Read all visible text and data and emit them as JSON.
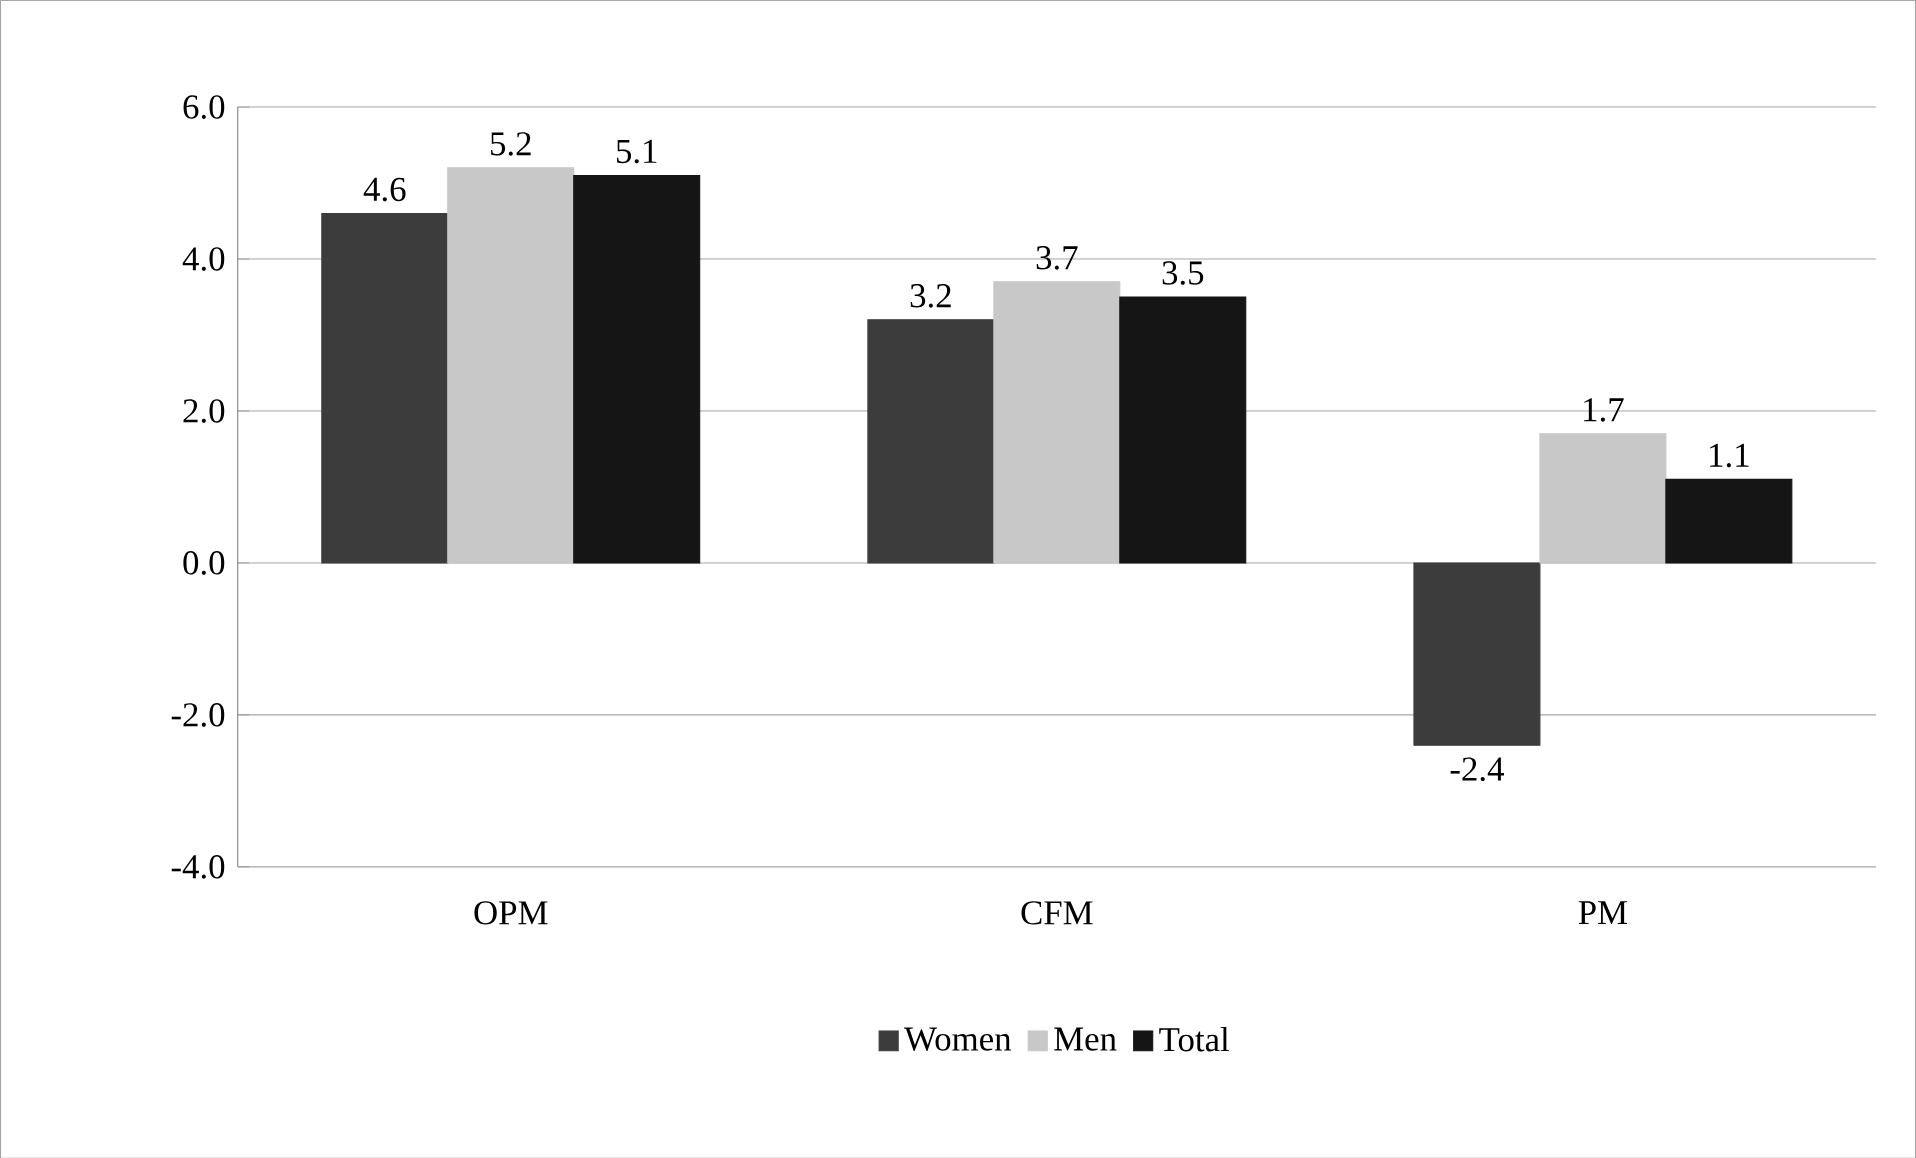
{
  "chart_data": {
    "type": "bar",
    "categories": [
      "OPM",
      "CFM",
      "PM"
    ],
    "series": [
      {
        "name": "Women",
        "color": "#3c3c3c",
        "values": [
          4.6,
          3.2,
          -2.4
        ]
      },
      {
        "name": "Men",
        "color": "#c8c8c8",
        "values": [
          5.2,
          3.7,
          1.7
        ]
      },
      {
        "name": "Total",
        "color": "#151515",
        "values": [
          5.1,
          3.5,
          1.1
        ]
      }
    ],
    "ylim": [
      -4,
      6
    ],
    "yticks": [
      {
        "value": -4,
        "label": "-4.0"
      },
      {
        "value": -2,
        "label": "-2.0"
      },
      {
        "value": 0,
        "label": "0.0"
      },
      {
        "value": 2,
        "label": "2.0"
      },
      {
        "value": 4,
        "label": "4.0"
      },
      {
        "value": 6,
        "label": "6.0"
      }
    ],
    "grid": "y",
    "legend": "bottom",
    "data_labels": true
  }
}
